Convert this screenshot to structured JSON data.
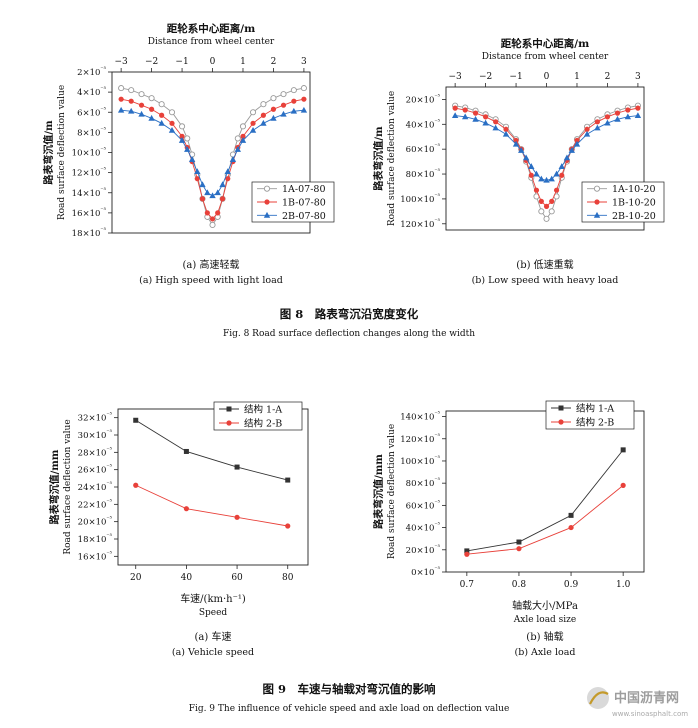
{
  "figure8": {
    "title": "图 8　路表弯沉沿宽度变化",
    "title_en": "Fig. 8 Road surface deflection changes along the width"
  },
  "figure9": {
    "title": "图 9　车速与轴载对弯沉值的影响",
    "title_en": "Fig. 9 The influence of vehicle speed and axle load on deflection value"
  },
  "watermark": {
    "text": "中国沥青网",
    "url": "www.sinoasphalt.com"
  },
  "chart_data": [
    {
      "id": "a8",
      "type": "line",
      "top_axis_label": "距轮系中心距离/m",
      "top_axis_label_en": "Distance from wheel center",
      "ylabel": "路表弯沉值/m",
      "ylabel_en": "Road surface deflection value",
      "caption": "(a) 高速轻载",
      "caption_en": "(a) High speed with light load",
      "xlim": [
        -3.3,
        3.2
      ],
      "x_ticks": [
        -3,
        -2,
        -1,
        0,
        1,
        2,
        3
      ],
      "ylim": [
        2,
        18
      ],
      "y_reversed": true,
      "y_ticks": [
        "2×10⁻⁵",
        "4×10⁻⁵",
        "6×10⁻⁵",
        "8×10⁻⁵",
        "10×10⁻⁵",
        "12×10⁻⁵",
        "14×10⁻⁵",
        "16×10⁻⁵",
        "18×10⁻⁵"
      ],
      "y_tick_values": [
        2,
        4,
        6,
        8,
        10,
        12,
        14,
        16,
        18
      ],
      "legend_position": "right",
      "series": [
        {
          "name": "1A-07-80",
          "color": "#9a9a9a",
          "marker": "circle-open",
          "x": [
            -3,
            -2.67,
            -2.33,
            -2,
            -1.67,
            -1.33,
            -1,
            -0.83,
            -0.67,
            -0.5,
            -0.33,
            -0.17,
            0,
            0.17,
            0.33,
            0.5,
            0.67,
            0.83,
            1,
            1.33,
            1.67,
            2,
            2.33,
            2.67,
            3
          ],
          "y": [
            3.6,
            3.8,
            4.2,
            4.6,
            5.2,
            6.0,
            7.4,
            8.6,
            10.2,
            12.2,
            14.6,
            16.4,
            17.2,
            16.4,
            14.6,
            12.2,
            10.2,
            8.6,
            7.4,
            6.0,
            5.2,
            4.6,
            4.2,
            3.8,
            3.6
          ]
        },
        {
          "name": "1B-07-80",
          "color": "#e8413a",
          "marker": "circle",
          "x": [
            -3,
            -2.67,
            -2.33,
            -2,
            -1.67,
            -1.33,
            -1,
            -0.83,
            -0.67,
            -0.5,
            -0.33,
            -0.17,
            0,
            0.17,
            0.33,
            0.5,
            0.67,
            0.83,
            1,
            1.33,
            1.67,
            2,
            2.33,
            2.67,
            3
          ],
          "y": [
            4.7,
            4.9,
            5.3,
            5.7,
            6.3,
            7.1,
            8.4,
            9.5,
            10.9,
            12.6,
            14.6,
            16.0,
            16.6,
            16.0,
            14.6,
            12.6,
            10.9,
            9.5,
            8.4,
            7.1,
            6.3,
            5.7,
            5.3,
            4.9,
            4.7
          ]
        },
        {
          "name": "2B-07-80",
          "color": "#2a6fc4",
          "marker": "triangle",
          "x": [
            -3,
            -2.67,
            -2.33,
            -2,
            -1.67,
            -1.33,
            -1,
            -0.83,
            -0.67,
            -0.5,
            -0.33,
            -0.17,
            0,
            0.17,
            0.33,
            0.5,
            0.67,
            0.83,
            1,
            1.33,
            1.67,
            2,
            2.33,
            2.67,
            3
          ],
          "y": [
            5.8,
            5.9,
            6.2,
            6.6,
            7.1,
            7.8,
            8.8,
            9.7,
            10.7,
            11.9,
            13.2,
            14.0,
            14.3,
            14.0,
            13.2,
            11.9,
            10.7,
            9.7,
            8.8,
            7.8,
            7.1,
            6.6,
            6.2,
            5.9,
            5.8
          ]
        }
      ]
    },
    {
      "id": "b8",
      "type": "line",
      "top_axis_label": "距轮系中心距离/m",
      "top_axis_label_en": "Distance from wheel center",
      "ylabel": "路表弯沉值/m",
      "ylabel_en": "Road surface deflection value",
      "caption": "(b) 低速重载",
      "caption_en": "(b) Low speed with heavy load",
      "xlim": [
        -3.3,
        3.2
      ],
      "x_ticks": [
        -3,
        -2,
        -1,
        0,
        1,
        2,
        3
      ],
      "ylim": [
        10,
        125
      ],
      "y_reversed": true,
      "y_ticks": [
        "20×10⁻⁵",
        "40×10⁻⁵",
        "60×10⁻⁵",
        "80×10⁻⁵",
        "100×10⁻⁵",
        "120×10⁻⁵"
      ],
      "y_tick_values": [
        20,
        40,
        60,
        80,
        100,
        120
      ],
      "legend_position": "right",
      "series": [
        {
          "name": "1A-10-20",
          "color": "#9a9a9a",
          "marker": "circle-open",
          "x": [
            -3,
            -2.67,
            -2.33,
            -2,
            -1.67,
            -1.33,
            -1,
            -0.83,
            -0.67,
            -0.5,
            -0.33,
            -0.17,
            0,
            0.17,
            0.33,
            0.5,
            0.67,
            0.83,
            1,
            1.33,
            1.67,
            2,
            2.33,
            2.67,
            3
          ],
          "y": [
            25,
            26.5,
            29,
            32,
            36,
            42,
            52,
            60,
            70,
            83,
            98,
            110,
            116,
            110,
            98,
            83,
            70,
            60,
            52,
            42,
            36,
            32,
            29,
            26.5,
            25
          ]
        },
        {
          "name": "1B-10-20",
          "color": "#e8413a",
          "marker": "circle",
          "x": [
            -3,
            -2.67,
            -2.33,
            -2,
            -1.67,
            -1.33,
            -1,
            -0.83,
            -0.67,
            -0.5,
            -0.33,
            -0.17,
            0,
            0.17,
            0.33,
            0.5,
            0.67,
            0.83,
            1,
            1.33,
            1.67,
            2,
            2.33,
            2.67,
            3
          ],
          "y": [
            27,
            28.5,
            31,
            34,
            38,
            44,
            53,
            60,
            69,
            81,
            93,
            102,
            106,
            102,
            93,
            81,
            69,
            60,
            53,
            44,
            38,
            34,
            31,
            28.5,
            27
          ]
        },
        {
          "name": "2B-10-20",
          "color": "#2a6fc4",
          "marker": "triangle",
          "x": [
            -3,
            -2.67,
            -2.33,
            -2,
            -1.67,
            -1.33,
            -1,
            -0.83,
            -0.67,
            -0.5,
            -0.33,
            -0.17,
            0,
            0.17,
            0.33,
            0.5,
            0.67,
            0.83,
            1,
            1.33,
            1.67,
            2,
            2.33,
            2.67,
            3
          ],
          "y": [
            33,
            34,
            36,
            39,
            43,
            48,
            56,
            61,
            67,
            74,
            80,
            84,
            85,
            84,
            80,
            74,
            67,
            61,
            56,
            48,
            43,
            39,
            36,
            34,
            33
          ]
        }
      ]
    },
    {
      "id": "a9",
      "type": "line",
      "xlabel": "车速/(km·h⁻¹)",
      "xlabel_en": "Speed",
      "ylabel": "路表弯沉值/mm",
      "ylabel_en": "Road surface deflection value",
      "caption": "(a) 车速",
      "caption_en": "(a) Vehicle speed",
      "xlim": [
        13,
        88
      ],
      "x_ticks": [
        20,
        40,
        60,
        80
      ],
      "ylim": [
        15,
        33
      ],
      "y_ticks": [
        "16×10⁻⁵",
        "18×10⁻⁵",
        "20×10⁻⁵",
        "22×10⁻⁵",
        "24×10⁻⁵",
        "26×10⁻⁵",
        "28×10⁻⁵",
        "30×10⁻⁵",
        "32×10⁻⁵"
      ],
      "y_tick_values": [
        16,
        18,
        20,
        22,
        24,
        26,
        28,
        30,
        32
      ],
      "legend_position": "top-right",
      "series": [
        {
          "name": "结构 1-A",
          "color": "#333333",
          "marker": "square",
          "x": [
            20,
            40,
            60,
            80
          ],
          "y": [
            31.7,
            28.1,
            26.3,
            24.8
          ]
        },
        {
          "name": "结构 2-B",
          "color": "#e8413a",
          "marker": "circle",
          "x": [
            20,
            40,
            60,
            80
          ],
          "y": [
            24.2,
            21.5,
            20.5,
            19.5
          ]
        }
      ]
    },
    {
      "id": "b9",
      "type": "line",
      "xlabel": "轴载大小/MPa",
      "xlabel_en": "Axle load size",
      "ylabel": "路表弯沉值/mm",
      "ylabel_en": "Road surface deflection value",
      "caption": "(b) 轴载",
      "caption_en": "(b) Axle load",
      "xlim": [
        0.66,
        1.04
      ],
      "x_ticks": [
        0.7,
        0.8,
        0.9,
        1.0
      ],
      "x_tick_labels": [
        "0.7",
        "0.8",
        "0.9",
        "1.0"
      ],
      "ylim": [
        0,
        145
      ],
      "y_ticks": [
        "0×10⁻⁵",
        "20×10⁻⁵",
        "40×10⁻⁵",
        "60×10⁻⁵",
        "80×10⁻⁵",
        "100×10⁻⁵",
        "120×10⁻⁵",
        "140×10⁻⁵"
      ],
      "y_tick_values": [
        0,
        20,
        40,
        60,
        80,
        100,
        120,
        140
      ],
      "legend_position": "top-left",
      "series": [
        {
          "name": "结构 1-A",
          "color": "#333333",
          "marker": "square",
          "x": [
            0.7,
            0.8,
            0.9,
            1.0
          ],
          "y": [
            19,
            27,
            51,
            110
          ]
        },
        {
          "name": "结构 2-B",
          "color": "#e8413a",
          "marker": "circle",
          "x": [
            0.7,
            0.8,
            0.9,
            1.0
          ],
          "y": [
            16,
            21,
            40,
            78
          ]
        }
      ]
    }
  ]
}
